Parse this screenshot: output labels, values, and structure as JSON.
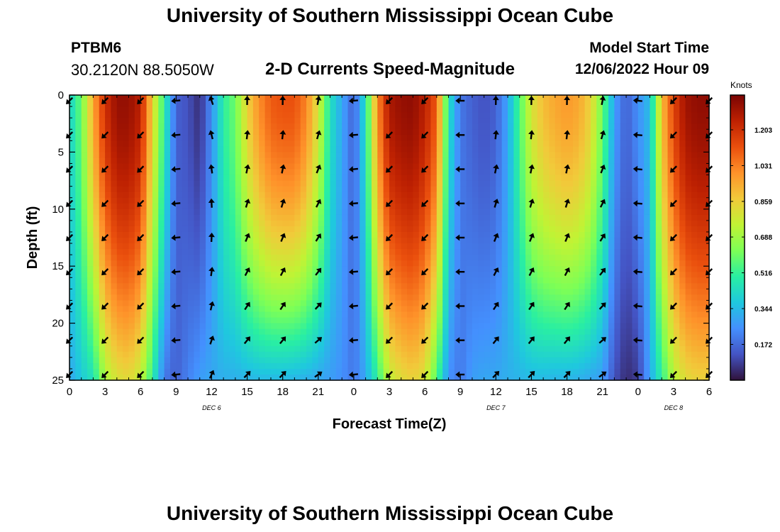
{
  "header": {
    "title": "University of Southern Mississippi Ocean Cube",
    "station_id": "PTBM6",
    "station_coords": "30.2120N  88.5050W",
    "subtitle": "2-D Currents Speed-Magnitude",
    "model_start_label": "Model Start Time",
    "model_start_time": "12/06/2022 Hour 09"
  },
  "footer": {
    "title": "University of Southern Mississippi Ocean Cube"
  },
  "chart_data": {
    "type": "heatmap",
    "title": "2-D Currents Speed-Magnitude",
    "xlabel": "Forecast Time(Z)",
    "ylabel": "Depth (ft)",
    "xlim": [
      0,
      54
    ],
    "ylim": [
      0,
      25
    ],
    "x_ticks": [
      0,
      3,
      6,
      9,
      12,
      15,
      18,
      21,
      24,
      27,
      30,
      33,
      36,
      39,
      42,
      45,
      48,
      51,
      54
    ],
    "x_tick_labels": [
      "0",
      "3",
      "6",
      "9",
      "12",
      "15",
      "18",
      "21",
      "0",
      "3",
      "6",
      "9",
      "12",
      "15",
      "18",
      "21",
      "0",
      "3",
      "6"
    ],
    "y_ticks": [
      0,
      5,
      10,
      15,
      20,
      25
    ],
    "y_tick_labels": [
      "0",
      "5",
      "10",
      "15",
      "20",
      "25"
    ],
    "date_labels": [
      {
        "label": "DEC 6",
        "x": 12
      },
      {
        "label": "DEC 7",
        "x": 36
      },
      {
        "label": "DEC 8",
        "x": 51
      }
    ],
    "colorbar": {
      "label": "Knots",
      "min": 0,
      "max": 1.37,
      "ticks": [
        1.203,
        1.031,
        0.859,
        0.688,
        0.516,
        0.344,
        0.172
      ],
      "tick_labels": [
        "1.203",
        "1.031",
        "0.859",
        "0.688",
        "0.516",
        "0.344",
        "0.172"
      ],
      "colormap": [
        "#30123b",
        "#4454c4",
        "#4490fe",
        "#1fc8de",
        "#29efa2",
        "#7dff56",
        "#c1f334",
        "#f1ca3a",
        "#fe922a",
        "#ea4f0d",
        "#be2102",
        "#7a0403"
      ]
    },
    "speed_profile_by_hour": [
      {
        "x": 0,
        "surface": 0.4,
        "bottom": 0.3
      },
      {
        "x": 1,
        "surface": 0.6,
        "bottom": 0.38
      },
      {
        "x": 2,
        "surface": 0.95,
        "bottom": 0.45
      },
      {
        "x": 3,
        "surface": 1.2,
        "bottom": 0.7
      },
      {
        "x": 4,
        "surface": 1.32,
        "bottom": 0.8
      },
      {
        "x": 5,
        "surface": 1.32,
        "bottom": 0.83
      },
      {
        "x": 6,
        "surface": 1.25,
        "bottom": 0.75
      },
      {
        "x": 7,
        "surface": 0.85,
        "bottom": 0.5
      },
      {
        "x": 8,
        "surface": 0.5,
        "bottom": 0.2
      },
      {
        "x": 9,
        "surface": 0.15,
        "bottom": 0.15
      },
      {
        "x": 10,
        "surface": 0.12,
        "bottom": 0.22
      },
      {
        "x": 11,
        "surface": 0.05,
        "bottom": 0.28
      },
      {
        "x": 12,
        "surface": 0.25,
        "bottom": 0.3
      },
      {
        "x": 13,
        "surface": 0.5,
        "bottom": 0.32
      },
      {
        "x": 14,
        "surface": 0.6,
        "bottom": 0.32
      },
      {
        "x": 15,
        "surface": 0.85,
        "bottom": 0.33
      },
      {
        "x": 16,
        "surface": 1.0,
        "bottom": 0.34
      },
      {
        "x": 17,
        "surface": 1.1,
        "bottom": 0.34
      },
      {
        "x": 18,
        "surface": 1.12,
        "bottom": 0.34
      },
      {
        "x": 19,
        "surface": 1.12,
        "bottom": 0.33
      },
      {
        "x": 20,
        "surface": 1.02,
        "bottom": 0.32
      },
      {
        "x": 21,
        "surface": 0.8,
        "bottom": 0.3
      },
      {
        "x": 22,
        "surface": 0.45,
        "bottom": 0.28
      },
      {
        "x": 23,
        "surface": 0.3,
        "bottom": 0.25
      },
      {
        "x": 24,
        "surface": 0.15,
        "bottom": 0.2
      },
      {
        "x": 25,
        "surface": 0.45,
        "bottom": 0.3
      },
      {
        "x": 26,
        "surface": 1.0,
        "bottom": 0.5
      },
      {
        "x": 27,
        "surface": 1.28,
        "bottom": 0.75
      },
      {
        "x": 28,
        "surface": 1.32,
        "bottom": 0.82
      },
      {
        "x": 29,
        "surface": 1.33,
        "bottom": 0.85
      },
      {
        "x": 30,
        "surface": 1.25,
        "bottom": 0.8
      },
      {
        "x": 31,
        "surface": 1.1,
        "bottom": 0.55
      },
      {
        "x": 32,
        "surface": 0.45,
        "bottom": 0.25
      },
      {
        "x": 33,
        "surface": 0.2,
        "bottom": 0.2
      },
      {
        "x": 34,
        "surface": 0.15,
        "bottom": 0.28
      },
      {
        "x": 35,
        "surface": 0.12,
        "bottom": 0.3
      },
      {
        "x": 36,
        "surface": 0.15,
        "bottom": 0.3
      },
      {
        "x": 37,
        "surface": 0.3,
        "bottom": 0.32
      },
      {
        "x": 38,
        "surface": 0.55,
        "bottom": 0.33
      },
      {
        "x": 39,
        "surface": 0.8,
        "bottom": 0.34
      },
      {
        "x": 40,
        "surface": 0.9,
        "bottom": 0.34
      },
      {
        "x": 41,
        "surface": 0.95,
        "bottom": 0.33
      },
      {
        "x": 42,
        "surface": 0.98,
        "bottom": 0.33
      },
      {
        "x": 43,
        "surface": 0.95,
        "bottom": 0.32
      },
      {
        "x": 44,
        "surface": 0.85,
        "bottom": 0.3
      },
      {
        "x": 45,
        "surface": 0.6,
        "bottom": 0.28
      },
      {
        "x": 46,
        "surface": 0.28,
        "bottom": 0.12
      },
      {
        "x": 47,
        "surface": 0.15,
        "bottom": 0.05
      },
      {
        "x": 48,
        "surface": 0.25,
        "bottom": 0.08
      },
      {
        "x": 49,
        "surface": 0.35,
        "bottom": 0.3
      },
      {
        "x": 50,
        "surface": 0.9,
        "bottom": 0.5
      },
      {
        "x": 51,
        "surface": 1.15,
        "bottom": 0.72
      },
      {
        "x": 52,
        "surface": 1.3,
        "bottom": 0.82
      },
      {
        "x": 53,
        "surface": 1.33,
        "bottom": 0.85
      },
      {
        "x": 54,
        "surface": 1.33,
        "bottom": 0.85
      }
    ],
    "arrow_times": [
      0,
      3,
      6,
      9,
      12,
      15,
      18,
      21,
      24,
      27,
      30,
      33,
      36,
      39,
      42,
      45,
      48,
      51,
      54
    ],
    "arrow_depths": [
      0.5,
      3.5,
      6.5,
      9.5,
      12.5,
      15.5,
      18.5,
      21.5,
      24.5
    ],
    "arrow_direction_deg_by_time": [
      225,
      225,
      225,
      265,
      340,
      0,
      0,
      10,
      265,
      225,
      225,
      270,
      0,
      0,
      0,
      10,
      275,
      225,
      225
    ],
    "arrow_direction_note": "degrees clockwise from up; near-bottom arrows rotate further clockwise during flood"
  }
}
